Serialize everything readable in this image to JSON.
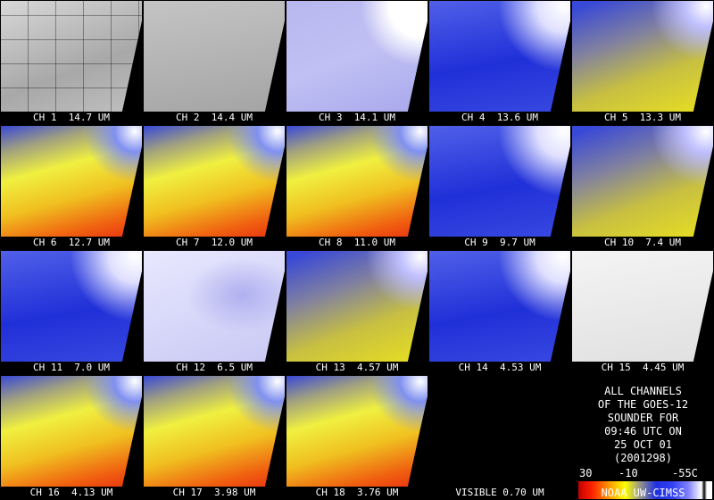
{
  "tiles": [
    {
      "label": "CH 1  14.7 UM"
    },
    {
      "label": "CH 2  14.4 UM"
    },
    {
      "label": "CH 3  14.1 UM"
    },
    {
      "label": "CH 4  13.6 UM"
    },
    {
      "label": "CH 5  13.3 UM"
    },
    {
      "label": "CH 6  12.7 UM"
    },
    {
      "label": "CH 7  12.0 UM"
    },
    {
      "label": "CH 8  11.0 UM"
    },
    {
      "label": "CH 9  9.7 UM"
    },
    {
      "label": "CH 10  7.4 UM"
    },
    {
      "label": "CH 11  7.0 UM"
    },
    {
      "label": "CH 12  6.5 UM"
    },
    {
      "label": "CH 13  4.57 UM"
    },
    {
      "label": "CH 14  4.53 UM"
    },
    {
      "label": "CH 15  4.45 UM"
    },
    {
      "label": "CH 16  4.13 UM"
    },
    {
      "label": "CH 17  3.98 UM"
    },
    {
      "label": "CH 18  3.76 UM"
    },
    {
      "label": "VISIBLE 0.70 UM"
    }
  ],
  "info": {
    "lines": [
      "ALL CHANNELS",
      "OF THE GOES-12",
      "SOUNDER FOR",
      "09:46 UTC ON",
      "25 OCT 01",
      "(2001298)"
    ]
  },
  "colorbar": {
    "labels": [
      "30",
      "-10",
      "-55C"
    ],
    "credit": "NOAA UW-CIMSS"
  }
}
